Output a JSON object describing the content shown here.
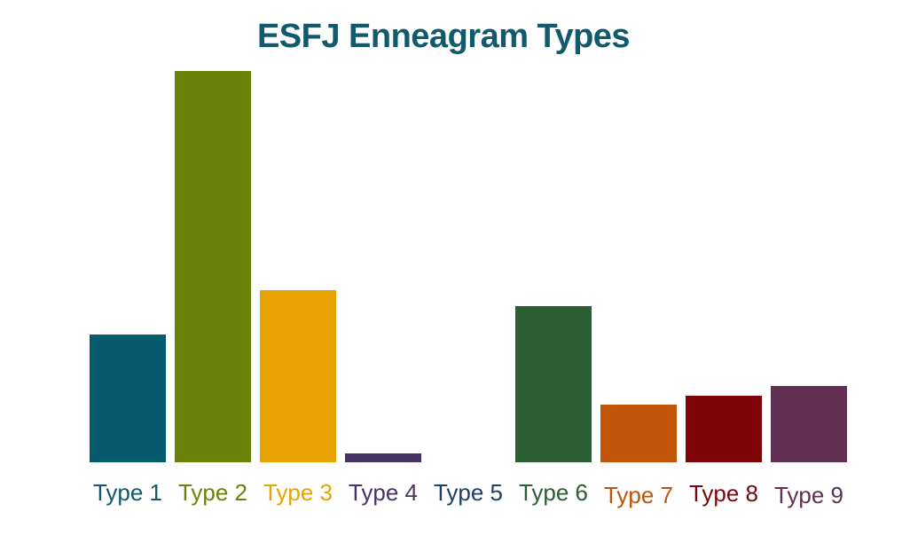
{
  "page": {
    "background": "#ffffff"
  },
  "chart_data": {
    "type": "bar",
    "title": "ESFJ Enneagram Types",
    "xlabel": "",
    "ylabel": "",
    "categories": [
      "Type 1",
      "Type 2",
      "Type 3",
      "Type 4",
      "Type 5",
      "Type 6",
      "Type 7",
      "Type 8",
      "Type 9"
    ],
    "values": [
      32.7,
      100,
      44.1,
      2.3,
      0,
      39.9,
      14.8,
      16.9,
      19.4
    ],
    "values_unit": "relative height, percent of tallest bar (Type 2); y-axis is unlabeled",
    "ylim": [
      0,
      100
    ],
    "grid": false,
    "legend": false,
    "axes_hidden": true,
    "colors": {
      "title": "#11596C",
      "bars": [
        "#065A6D",
        "#6A8208",
        "#E8A303",
        "#473366",
        "#1F3F63",
        "#2C5E34",
        "#C05407",
        "#7D050A",
        "#623053"
      ],
      "labels": [
        "#11596C",
        "#6A8208",
        "#E8A303",
        "#473366",
        "#1F3F63",
        "#2C5E34",
        "#C05407",
        "#7D050A",
        "#623053"
      ]
    }
  }
}
